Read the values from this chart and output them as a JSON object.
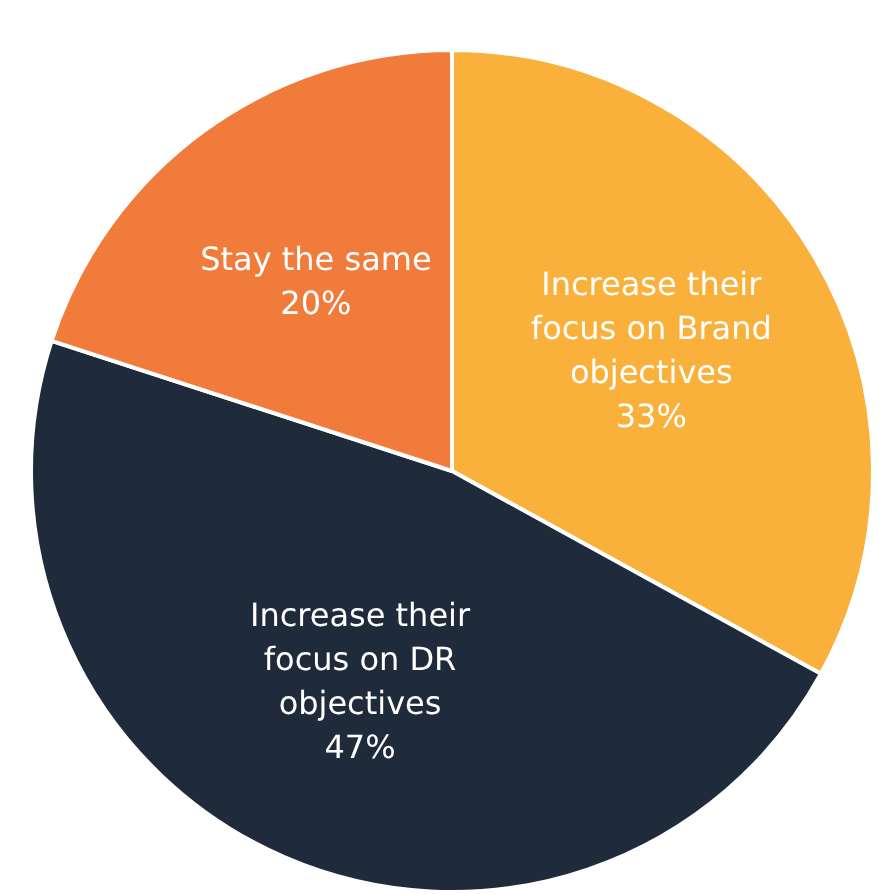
{
  "chart_data": {
    "type": "pie",
    "categories": [
      "Increase their focus on Brand objectives",
      "Increase their focus on DR objectives",
      "Stay the same"
    ],
    "values": [
      33,
      47,
      20
    ],
    "colors": [
      "#f9b13b",
      "#1f2a3b",
      "#f07b3b"
    ],
    "value_labels": [
      "33%",
      "47%",
      "20%"
    ],
    "legend": false
  }
}
